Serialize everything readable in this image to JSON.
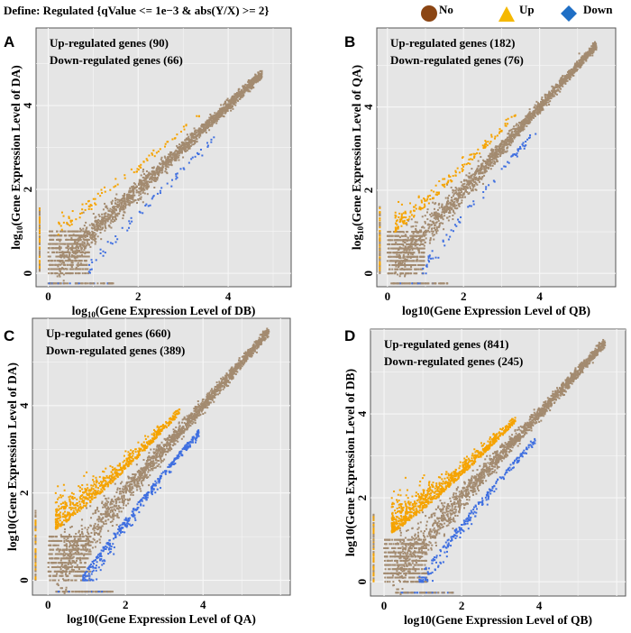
{
  "definition": "Define: Regulated {qValue <= 1e−3 & abs(Y/X) >= 2}",
  "legend": [
    {
      "label": "No",
      "shape": "circle",
      "color": "#8B4513"
    },
    {
      "label": "Up",
      "shape": "triangle",
      "color": "#F5B800"
    },
    {
      "label": "Down",
      "shape": "diamond",
      "color": "#1F6FC5"
    }
  ],
  "colors": {
    "panel_bg": "#E5E5E5",
    "grid": "#F7F7F7",
    "no": "#A38B70",
    "up": "#F5A300",
    "down": "#3F6FE0"
  },
  "chart_data": [
    {
      "type": "scatter",
      "panel_label": "A",
      "up_text": "Up-regulated genes (90)",
      "down_text": "Down-regulated genes (66)",
      "up_count": 90,
      "down_count": 66,
      "xlabel": "log10(Gene Expression Level of DB)",
      "ylabel": "log10(Gene Expression Level of DA)",
      "xlabel_subscript": true,
      "ylabel_subscript": true,
      "xticks": [
        "0",
        "2",
        "4"
      ],
      "yticks": [
        "0",
        "2",
        "4"
      ],
      "xlim": [
        -0.27,
        5.4
      ],
      "ylim": [
        -0.32,
        5.85
      ],
      "xmax_point": 4.85,
      "spread": 0.45
    },
    {
      "type": "scatter",
      "panel_label": "B",
      "up_text": "Up-regulated genes (182)",
      "down_text": "Down-regulated genes (76)",
      "up_count": 182,
      "down_count": 76,
      "xlabel": "log10(Gene Expression Level of QB)",
      "ylabel": "log10(Gene Expression Level of QA)",
      "xlabel_subscript": false,
      "ylabel_subscript": true,
      "xticks": [
        "0",
        "2",
        "4"
      ],
      "yticks": [
        "0",
        "2",
        "4"
      ],
      "xlim": [
        -0.28,
        6.0
      ],
      "ylim": [
        -0.32,
        5.9
      ],
      "xmax_point": 5.6,
      "spread": 0.55
    },
    {
      "type": "scatter",
      "panel_label": "C",
      "up_text": "Up-regulated genes (660)",
      "down_text": "Down-regulated genes (389)",
      "up_count": 660,
      "down_count": 389,
      "xlabel": "log10(Gene Expression Level of QA)",
      "ylabel": "log10(Gene Expression Level of DA)",
      "xlabel_subscript": false,
      "ylabel_subscript": false,
      "xticks": [
        "0",
        "2",
        "4"
      ],
      "yticks": [
        "0",
        "2",
        "4"
      ],
      "xlim": [
        -0.4,
        6.25
      ],
      "ylim": [
        -0.34,
        6.0
      ],
      "xmax_point": 5.8,
      "spread": 0.75
    },
    {
      "type": "scatter",
      "panel_label": "D",
      "up_text": "Up-regulated genes (841)",
      "down_text": "Down-regulated genes (245)",
      "up_count": 841,
      "down_count": 245,
      "xlabel": "log10(Gene Expression Level of QB)",
      "ylabel": "log10(Gene Expression Level of DB)",
      "xlabel_subscript": false,
      "ylabel_subscript": false,
      "xticks": [
        "0",
        "2",
        "4"
      ],
      "yticks": [
        "0",
        "2",
        "4"
      ],
      "xlim": [
        -0.35,
        6.23
      ],
      "ylim": [
        -0.34,
        6.02
      ],
      "xmax_point": 5.8,
      "spread": 0.75
    }
  ]
}
